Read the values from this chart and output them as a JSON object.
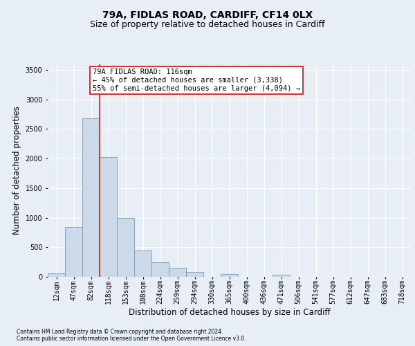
{
  "title1": "79A, FIDLAS ROAD, CARDIFF, CF14 0LX",
  "title2": "Size of property relative to detached houses in Cardiff",
  "xlabel": "Distribution of detached houses by size in Cardiff",
  "ylabel": "Number of detached properties",
  "footnote1": "Contains HM Land Registry data © Crown copyright and database right 2024.",
  "footnote2": "Contains public sector information licensed under the Open Government Licence v3.0.",
  "bar_color": "#ccd9e8",
  "bar_edge_color": "#7799bb",
  "vline_color": "#cc2222",
  "annotation_text": "79A FIDLAS ROAD: 116sqm\n← 45% of detached houses are smaller (3,338)\n55% of semi-detached houses are larger (4,094) →",
  "annotation_box_color": "#ffffff",
  "annotation_box_edge": "#cc2222",
  "categories": [
    "12sqm",
    "47sqm",
    "82sqm",
    "118sqm",
    "153sqm",
    "188sqm",
    "224sqm",
    "259sqm",
    "294sqm",
    "330sqm",
    "365sqm",
    "400sqm",
    "436sqm",
    "471sqm",
    "506sqm",
    "541sqm",
    "577sqm",
    "612sqm",
    "647sqm",
    "683sqm",
    "718sqm"
  ],
  "values": [
    60,
    840,
    2680,
    2020,
    1000,
    450,
    250,
    155,
    80,
    5,
    45,
    0,
    0,
    30,
    0,
    0,
    0,
    0,
    0,
    0,
    0
  ],
  "ylim": [
    0,
    3600
  ],
  "yticks": [
    0,
    500,
    1000,
    1500,
    2000,
    2500,
    3000,
    3500
  ],
  "background_color": "#e8eef5",
  "plot_bg_color": "#e8eef5",
  "grid_color": "#ffffff",
  "title1_fontsize": 10,
  "title2_fontsize": 9,
  "tick_fontsize": 7,
  "ylabel_fontsize": 8.5,
  "xlabel_fontsize": 8.5,
  "ann_fontsize": 7.5,
  "footnote_fontsize": 5.5
}
